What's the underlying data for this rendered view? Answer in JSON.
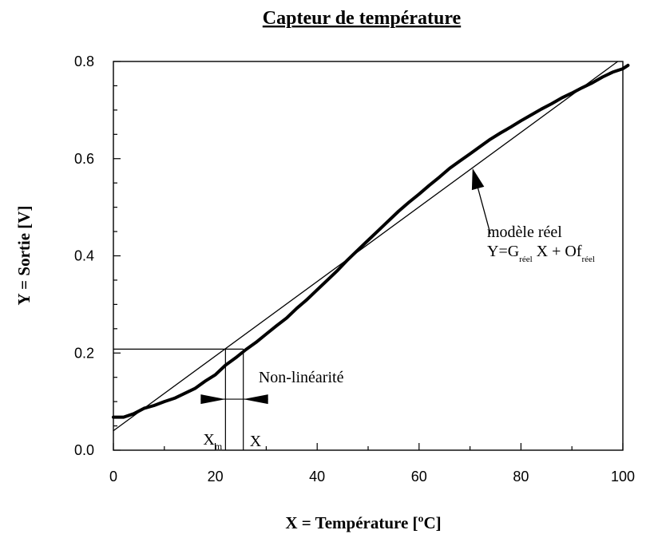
{
  "chart_data": {
    "type": "line",
    "title": "Capteur de température",
    "xlabel": "X = Température [ºC]",
    "ylabel": "Y = Sortie [V]",
    "xlim": [
      0,
      100
    ],
    "ylim": [
      0,
      0.8
    ],
    "x_ticks": [
      0,
      20,
      40,
      60,
      80,
      100
    ],
    "x_tick_labels": [
      "0",
      "20",
      "40",
      "60",
      "80",
      "100"
    ],
    "y_ticks": [
      0,
      0.2,
      0.4,
      0.6,
      0.8
    ],
    "y_tick_labels": [
      "0.0",
      "0.2",
      "0.4",
      "0.6",
      "0.8"
    ],
    "grid": false,
    "series": [
      {
        "style": "thick",
        "x": [
          0,
          2,
          4,
          6,
          8,
          10,
          12,
          14,
          16,
          18,
          20,
          22,
          24,
          26,
          28,
          30,
          32,
          34,
          36,
          38,
          40,
          42,
          44,
          46,
          48,
          50,
          52,
          54,
          56,
          58,
          60,
          62,
          64,
          66,
          68,
          70,
          72,
          74,
          76,
          78,
          80,
          82,
          84,
          86,
          88,
          90,
          92,
          94,
          96,
          98,
          100,
          101
        ],
        "y": [
          0.068,
          0.068,
          0.075,
          0.086,
          0.092,
          0.1,
          0.107,
          0.117,
          0.127,
          0.142,
          0.155,
          0.175,
          0.19,
          0.207,
          0.222,
          0.239,
          0.256,
          0.272,
          0.292,
          0.31,
          0.33,
          0.35,
          0.37,
          0.392,
          0.412,
          0.432,
          0.452,
          0.472,
          0.492,
          0.51,
          0.527,
          0.545,
          0.562,
          0.58,
          0.595,
          0.61,
          0.625,
          0.64,
          0.653,
          0.665,
          0.678,
          0.69,
          0.702,
          0.713,
          0.725,
          0.735,
          0.746,
          0.756,
          0.768,
          0.778,
          0.785,
          0.792
        ]
      },
      {
        "style": "thin",
        "x": [
          0,
          99
        ],
        "y": [
          0.04,
          0.8
        ]
      }
    ],
    "annotations": {
      "model_label": "modèle réel",
      "model_eq": {
        "prefix": "Y=G",
        "sub1": "réel",
        "mid": " X + Of",
        "sub2": "réel"
      },
      "model_arrow": {
        "tail": [
          74,
          0.445
        ],
        "head": [
          70.5,
          0.58
        ]
      },
      "nonlin_label": "Non-linéarité",
      "nonlin_label_pos": [
        28.5,
        0.14
      ],
      "y_ref": 0.208,
      "xm_value": 22,
      "x_value": 25.5,
      "nonlin_arrow_y": 0.105,
      "xm_label": {
        "main": "X",
        "sub": "m"
      },
      "x_label": "X"
    }
  }
}
